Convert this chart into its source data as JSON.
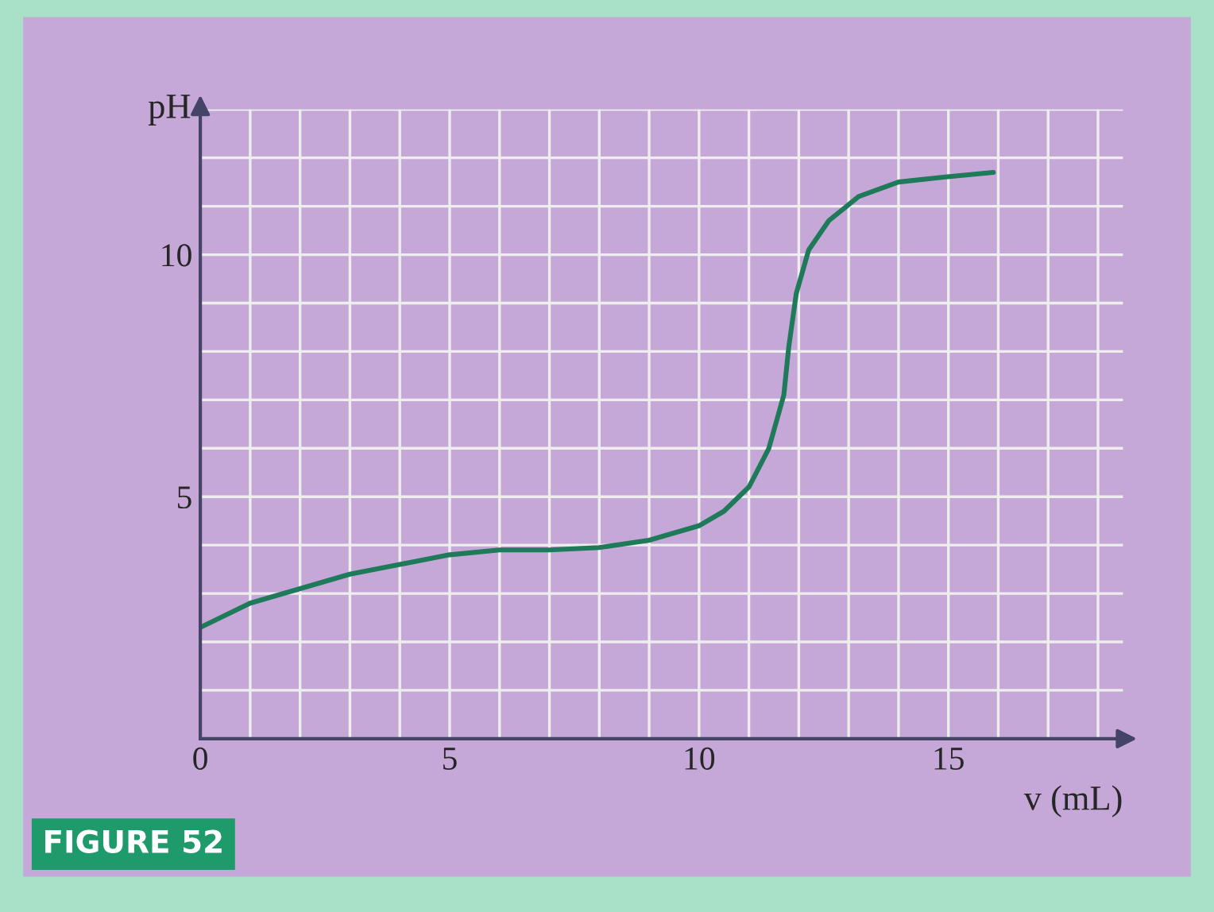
{
  "chart_data": {
    "type": "line",
    "xlabel": "v (mL)",
    "ylabel": "pH",
    "x": [
      0,
      1,
      2,
      3,
      4,
      5,
      6,
      7,
      8,
      9,
      10,
      10.5,
      11,
      11.4,
      11.7,
      11.8,
      11.95,
      12.2,
      12.6,
      13.2,
      14,
      14.9,
      15.9
    ],
    "series": [
      {
        "color": "#1f7a5a",
        "values": [
          2.3,
          2.8,
          3.1,
          3.4,
          3.6,
          3.8,
          3.9,
          3.9,
          3.95,
          4.1,
          4.4,
          4.7,
          5.2,
          6.0,
          7.1,
          8.1,
          9.2,
          10.1,
          10.7,
          11.2,
          11.5,
          11.6,
          11.7
        ]
      }
    ],
    "xlim": [
      0,
      18.5
    ],
    "ylim": [
      0,
      13
    ],
    "xticks": [
      0,
      5,
      10,
      15
    ],
    "yticks": [
      5,
      10
    ],
    "grid": true,
    "legend": false,
    "marker": "none",
    "line_style": "solid",
    "annotations": [
      "FIGURE 52"
    ]
  }
}
